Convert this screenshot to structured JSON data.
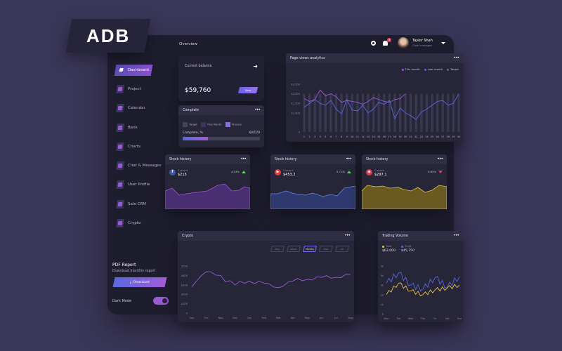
{
  "brand": {
    "logo_text": "ADB"
  },
  "topbar": {
    "title": "Overview",
    "notification_count": "3",
    "user": {
      "name": "Taylor Shah",
      "role": "Chief manager"
    }
  },
  "sidebar": {
    "items": [
      {
        "label": "Dashboard",
        "icon": "dashboard-icon",
        "active": true
      },
      {
        "label": "Project",
        "icon": "project-icon"
      },
      {
        "label": "Calendar",
        "icon": "calendar-icon"
      },
      {
        "label": "Bank",
        "icon": "bank-icon"
      },
      {
        "label": "Charts",
        "icon": "charts-icon"
      },
      {
        "label": "Chat & Messages",
        "icon": "chat-icon"
      },
      {
        "label": "User Profile",
        "icon": "user-icon"
      },
      {
        "label": "Sale CRM",
        "icon": "crm-icon"
      },
      {
        "label": "Crypto",
        "icon": "crypto-icon"
      }
    ],
    "pdf_report": {
      "title": "PDF Report",
      "subtitle": "Download monthly report",
      "button": "Download"
    },
    "dark_mode": {
      "label": "Dark Mode",
      "enabled": true
    }
  },
  "balance": {
    "label": "Current balance",
    "amount": "$59,760",
    "button": "View"
  },
  "complete": {
    "title": "Complete",
    "legend": [
      "Target",
      "This Month",
      "Process"
    ],
    "progress_label": "Complete, %",
    "progress_value": "40/120",
    "progress_pct": 33
  },
  "page_views": {
    "title": "Page views analytics",
    "legend": [
      {
        "label": "This month",
        "color": "#9b59d6"
      },
      {
        "label": "Last month",
        "color": "#5968e0"
      },
      {
        "label": "Target",
        "color": "#6b6980"
      }
    ]
  },
  "stocks": [
    {
      "title": "Stock history",
      "current_label": "Current",
      "value": "$215",
      "change": "4.14%",
      "direction": "up",
      "icon": "facebook-icon",
      "icon_glyph": "f",
      "icon_color": "#3b5998",
      "fill": "#4a2e72",
      "line": "#9b59d6"
    },
    {
      "title": "Stock history",
      "current_label": "Current",
      "value": "$453.2",
      "change": "5.71%",
      "direction": "up",
      "icon": "youtube-icon",
      "icon_glyph": "▶",
      "icon_color": "#e03a3a",
      "fill": "#2e3a6e",
      "line": "#6a86e8"
    },
    {
      "title": "Stock history",
      "current_label": "Current",
      "value": "$297.1",
      "change": "0.65%",
      "direction": "down",
      "icon": "dribbble-icon",
      "icon_glyph": "◉",
      "icon_color": "#d63a4a",
      "fill": "#6a5a22",
      "line": "#d6c24a"
    }
  ],
  "crypto": {
    "title": "Crypto",
    "ranges": [
      "Day",
      "Week",
      "Months",
      "Year",
      "All"
    ],
    "active_range": "Months"
  },
  "trading": {
    "title": "Trading Volume",
    "legend": [
      {
        "label": "Total",
        "value": "$62,000",
        "color": "#e6c44a"
      },
      {
        "label": "Profit",
        "value": "$45,750",
        "color": "#5968e0"
      }
    ]
  },
  "chart_data": [
    {
      "type": "line",
      "title": "Page views analytics",
      "x": [
        1,
        2,
        3,
        4,
        5,
        6,
        7,
        8,
        9,
        10,
        11,
        12,
        13,
        14,
        15,
        16,
        17,
        18,
        19,
        20,
        21,
        22,
        23,
        24,
        25,
        26,
        27,
        28,
        29,
        30
      ],
      "yticks": [
        "0",
        "$1,000",
        "$1,500",
        "$2,000",
        "$2,500"
      ],
      "ylim": [
        0,
        2500
      ],
      "series": [
        {
          "name": "This month",
          "values": [
            1750,
            1600,
            1700,
            2200,
            1900,
            2000,
            1850,
            1550,
            1650,
            1600,
            1550,
            1450,
            1600,
            1800,
            1700,
            1600,
            1550,
            1700,
            1750,
            2000
          ]
        },
        {
          "name": "Last month",
          "values": [
            1300,
            1500,
            1700,
            1500,
            1400,
            1650,
            1200,
            950,
            1700,
            1150,
            1100,
            1400,
            1000,
            1200,
            1550,
            1450,
            1650,
            700,
            1250,
            1000,
            850,
            650,
            1050,
            1200,
            1400,
            1600,
            1650,
            1400,
            1500,
            2000
          ]
        },
        {
          "name": "Target",
          "values": [
            2000,
            2000,
            2000,
            2000,
            2000,
            2000,
            2000,
            2000,
            2000,
            2000,
            2000,
            2000,
            2000,
            2000,
            2000,
            2000,
            2000,
            2000,
            2000,
            2000,
            2000,
            2000,
            2000,
            2000,
            2000,
            2000,
            2000,
            2000,
            2000,
            2000
          ]
        }
      ]
    },
    {
      "type": "area",
      "title": "Crypto",
      "categories": [
        "Sep",
        "Oct",
        "Nov",
        "Dec",
        "Jan",
        "Feb",
        "Mar",
        "Apr",
        "May",
        "Jun",
        "Jul",
        "Aug"
      ],
      "yticks": [
        "0",
        "$100",
        "$200",
        "$300",
        "$400",
        "$500"
      ],
      "ylim": [
        0,
        500
      ],
      "values": [
        280,
        440,
        400,
        300,
        340,
        320,
        270,
        340,
        360,
        380,
        380,
        410
      ]
    },
    {
      "type": "line",
      "title": "Trading Volume",
      "categories": [
        "Mon",
        "Tue",
        "Wed",
        "Thu",
        "Fri",
        "Sat",
        "Sun"
      ],
      "yticks": [
        "0",
        "1k",
        "2k",
        "3k",
        "4k",
        "5k"
      ],
      "ylim": [
        0,
        5000
      ],
      "series": [
        {
          "name": "Total",
          "values": [
            2000,
            3200,
            2400,
            2000,
            2500,
            2700,
            3000
          ]
        },
        {
          "name": "Profit",
          "values": [
            3200,
            4300,
            3000,
            2600,
            3800,
            2800,
            3900
          ]
        }
      ]
    }
  ]
}
